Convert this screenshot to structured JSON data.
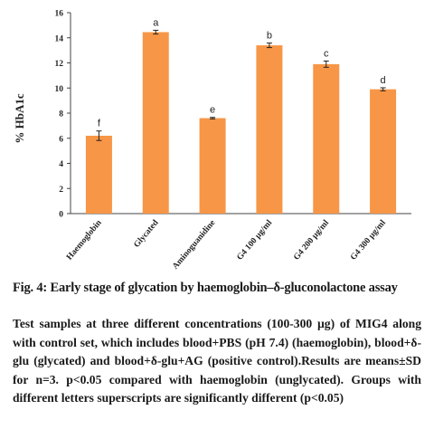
{
  "chart_data": {
    "type": "bar",
    "categories": [
      "Haemoglobin",
      "Glycated",
      "Aminoguanidine",
      "G4 100 µg/ml",
      "G4 200 µg/ml",
      "G4 300 µg/ml"
    ],
    "values": [
      6.2,
      14.45,
      7.6,
      13.4,
      11.9,
      9.9
    ],
    "errors": [
      0.38,
      0.15,
      0.06,
      0.18,
      0.25,
      0.12
    ],
    "letters": [
      "f",
      "a",
      "e",
      "b",
      "c",
      "d"
    ],
    "ylabel": "% HbA1c",
    "xlabel": "",
    "title": "",
    "ylim": [
      0,
      16
    ],
    "yticks": [
      "0",
      "2",
      "4",
      "6",
      "8",
      "10",
      "12",
      "14",
      "16"
    ],
    "bar_color": "#f79646",
    "grid": false
  },
  "caption": {
    "title": "Fig. 4: Early stage of glycation by haemoglobin–δ-gluconolactone assay",
    "body": "Test samples at three different concentrations (100-300 µg) of MIG4 along with control set, which includes blood+PBS (pH 7.4) (haemoglobin), blood+δ-glu (glycated) and blood+δ-glu+AG (positive control).Results are means±SD for n=3. p<0.05 compared with haemoglobin (unglycated). Groups with different letters superscripts are significantly different (p<0.05)"
  }
}
